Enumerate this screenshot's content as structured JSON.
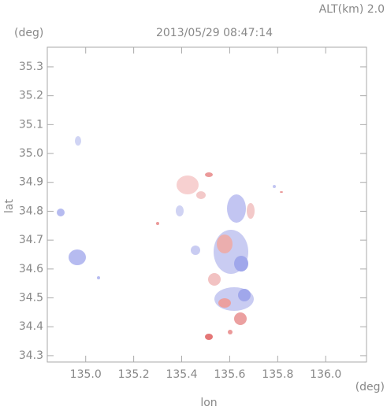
{
  "chart_data": {
    "type": "radar-map",
    "title": "2013/05/29 08:47:14",
    "altitude_label": "ALT(km) 2.0",
    "y_unit": "(deg)",
    "x_unit": "(deg)",
    "xlabel": "lon",
    "ylabel": "lat",
    "xlim": [
      134.84,
      136.17
    ],
    "ylim": [
      34.278,
      35.368
    ],
    "xticks": [
      {
        "value": 135,
        "label": "135.0"
      },
      135.2,
      135.4,
      135.6,
      135.8,
      {
        "value": 136,
        "label": "136.0"
      }
    ],
    "yticks": [
      34.3,
      34.4,
      34.5,
      34.6,
      34.7,
      34.8,
      34.9,
      {
        "value": 35,
        "label": "35.0"
      },
      35.1,
      35.2,
      35.3
    ]
  }
}
